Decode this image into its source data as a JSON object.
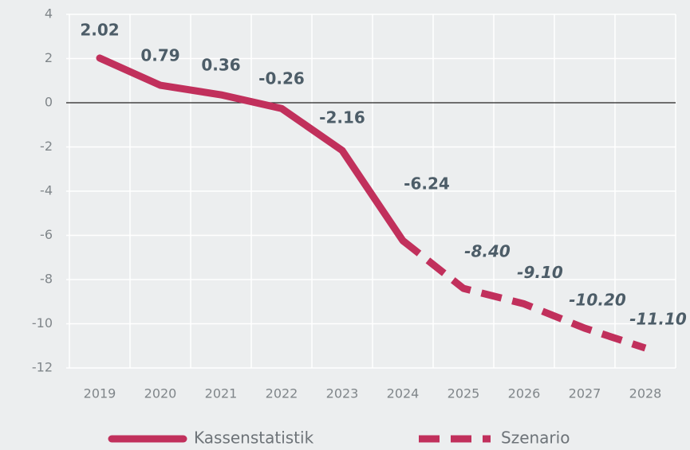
{
  "chart_data": {
    "type": "line",
    "categories": [
      "2019",
      "2020",
      "2021",
      "2022",
      "2023",
      "2024",
      "2025",
      "2026",
      "2027",
      "2028"
    ],
    "series": [
      {
        "name": "Kassenstatistik",
        "color": "#c1305c",
        "style": "solid",
        "values": [
          2.02,
          0.79,
          0.36,
          -0.26,
          -2.16,
          -6.24,
          null,
          null,
          null,
          null
        ]
      },
      {
        "name": "Szenario",
        "color": "#c1305c",
        "style": "dashed",
        "values": [
          null,
          null,
          null,
          null,
          null,
          -6.24,
          -8.4,
          -9.1,
          -10.2,
          -11.1
        ],
        "value_labels": [
          null,
          null,
          null,
          null,
          null,
          null,
          "-8.40",
          "-9.10",
          "-10.20",
          "-11.10"
        ]
      }
    ],
    "ylim": [
      -12,
      4
    ],
    "yticks": [
      -12,
      -10,
      -8,
      -6,
      -4,
      -2,
      0,
      2,
      4
    ],
    "grid": true,
    "legend": "bottom"
  }
}
